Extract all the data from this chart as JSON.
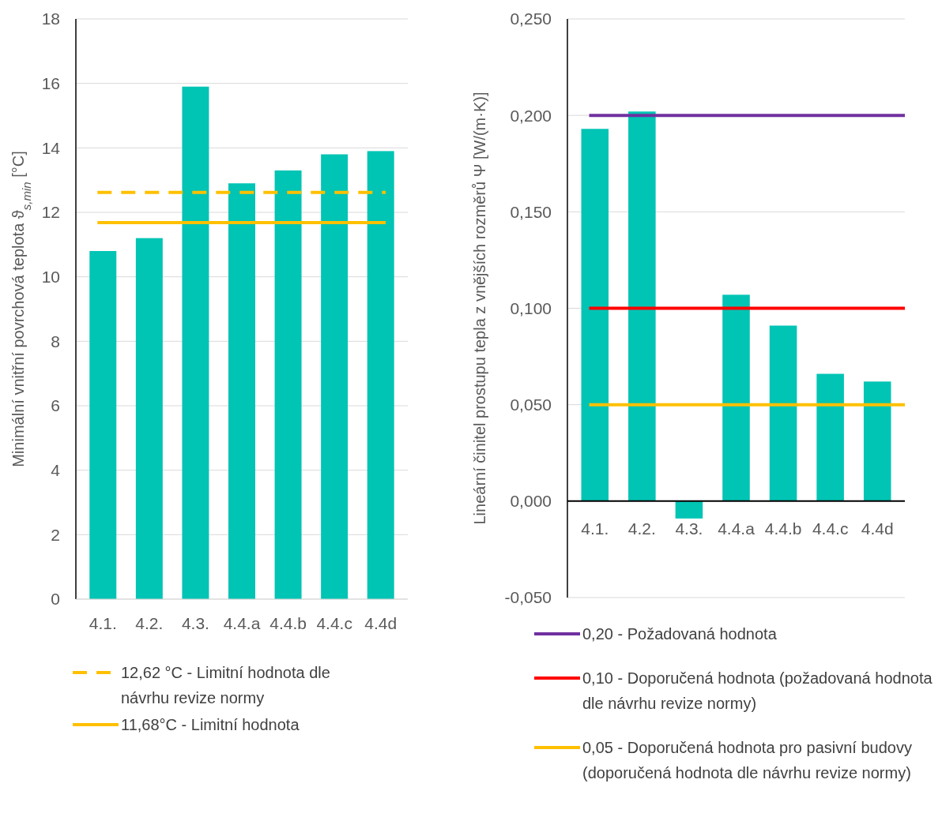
{
  "chart_data": [
    {
      "type": "bar",
      "ylabel": "Minimální vnitřní povrchová teplota ϑ$_{s,min}$ [°C]",
      "categories": [
        "4.1.",
        "4.2.",
        "4.3.",
        "4.4.a",
        "4.4.b",
        "4.4.c",
        "4.4d"
      ],
      "values": [
        10.8,
        11.2,
        15.9,
        12.9,
        13.3,
        13.8,
        13.9
      ],
      "color": "#00c4b4",
      "ylim": [
        0,
        18
      ],
      "yticks": [
        0,
        2,
        4,
        6,
        8,
        10,
        12,
        14,
        16,
        18
      ],
      "grid": "y",
      "legend": "bottom",
      "ref_lines": [
        {
          "axis": "y",
          "value": 12.62,
          "label": "12,62 °C - Limitní hodnota dle návrhu revize normy",
          "color": "#ffc000",
          "line_style": "dashed"
        },
        {
          "axis": "y",
          "value": 11.68,
          "label": "11,68°C - Limitní hodnota",
          "color": "#ffc000",
          "line_style": "solid"
        }
      ]
    },
    {
      "type": "bar",
      "ylabel": "Lineární činitel prostupu tepla z vnějších rozměrů Ψ [W/(m·K)]",
      "categories": [
        "4.1.",
        "4.2.",
        "4.3.",
        "4.4.a",
        "4.4.b",
        "4.4.c",
        "4.4d"
      ],
      "values": [
        0.193,
        0.202,
        -0.009,
        0.107,
        0.091,
        0.066,
        0.062
      ],
      "color": "#00c4b4",
      "ylim": [
        -0.05,
        0.25
      ],
      "yticks": [
        {
          "value": -0.05,
          "label": "-0,050"
        },
        {
          "value": 0,
          "label": "0,000"
        },
        {
          "value": 0.05,
          "label": "0,050"
        },
        {
          "value": 0.1,
          "label": "0,100"
        },
        {
          "value": 0.15,
          "label": "0,150"
        },
        {
          "value": 0.2,
          "label": "0,200"
        },
        {
          "value": 0.25,
          "label": "0,250"
        }
      ],
      "grid": "y",
      "legend": "bottom",
      "ref_lines": [
        {
          "axis": "y",
          "value": 0.2,
          "label": "0,20 - Požadovaná hodnota",
          "color": "#7030a0",
          "line_style": "solid"
        },
        {
          "axis": "y",
          "value": 0.1,
          "label": "0,10 - Doporučená hodnota (požadovaná hodnota dle návrhu revize normy)",
          "color": "#ff0000",
          "line_style": "solid"
        },
        {
          "axis": "y",
          "value": 0.05,
          "label": "0,05 - Doporučená hodnota pro pasivní budovy (doporučená hodnota dle návrhu revize normy)",
          "color": "#ffc000",
          "line_style": "solid"
        }
      ]
    }
  ]
}
